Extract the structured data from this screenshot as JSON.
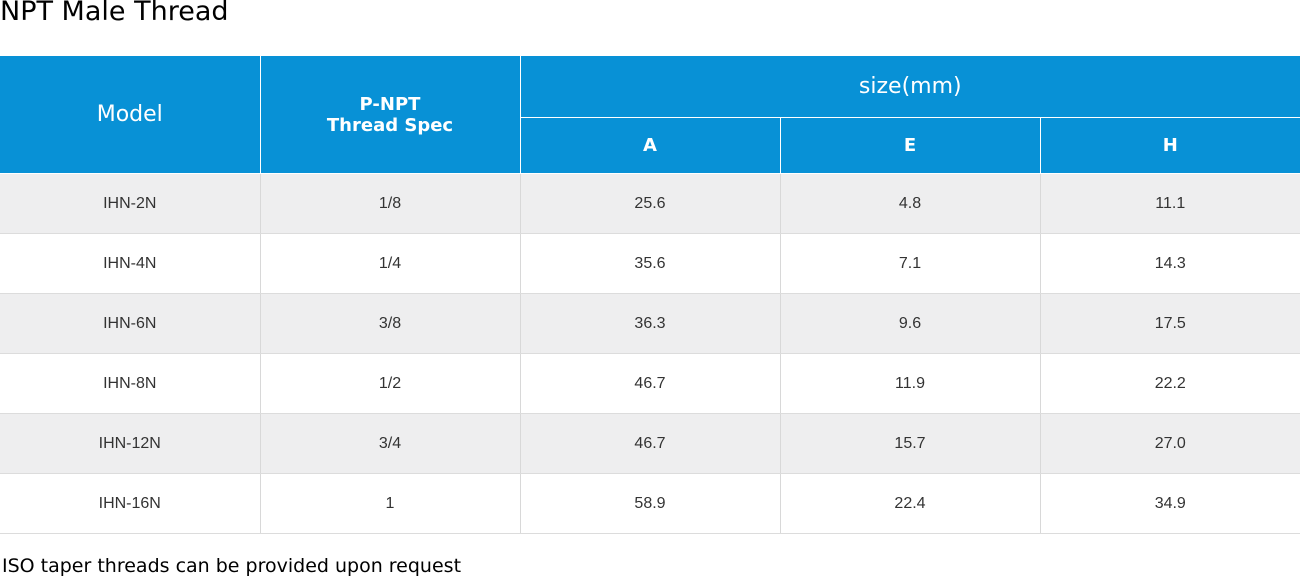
{
  "title": "NPT Male Thread",
  "colors": {
    "header_bg": "#0891d6",
    "header_text": "#ffffff",
    "row_alt_bg": "#eeeeef",
    "row_bg": "#ffffff"
  },
  "table": {
    "headers": {
      "model": "Model",
      "spec_line1": "P-NPT",
      "spec_line2": "Thread Spec",
      "size_group": "size(mm)",
      "a": "A",
      "e": "E",
      "h": "H"
    },
    "rows": [
      {
        "model": "IHN-2N",
        "spec": "1/8",
        "a": "25.6",
        "e": "4.8",
        "h": "11.1"
      },
      {
        "model": "IHN-4N",
        "spec": "1/4",
        "a": "35.6",
        "e": "7.1",
        "h": "14.3"
      },
      {
        "model": "IHN-6N",
        "spec": "3/8",
        "a": "36.3",
        "e": "9.6",
        "h": "17.5"
      },
      {
        "model": "IHN-8N",
        "spec": "1/2",
        "a": "46.7",
        "e": "11.9",
        "h": "22.2"
      },
      {
        "model": "IHN-12N",
        "spec": "3/4",
        "a": "46.7",
        "e": "15.7",
        "h": "27.0"
      },
      {
        "model": "IHN-16N",
        "spec": "1",
        "a": "58.9",
        "e": "22.4",
        "h": "34.9"
      }
    ]
  },
  "note": "ISO taper threads can be provided upon request"
}
